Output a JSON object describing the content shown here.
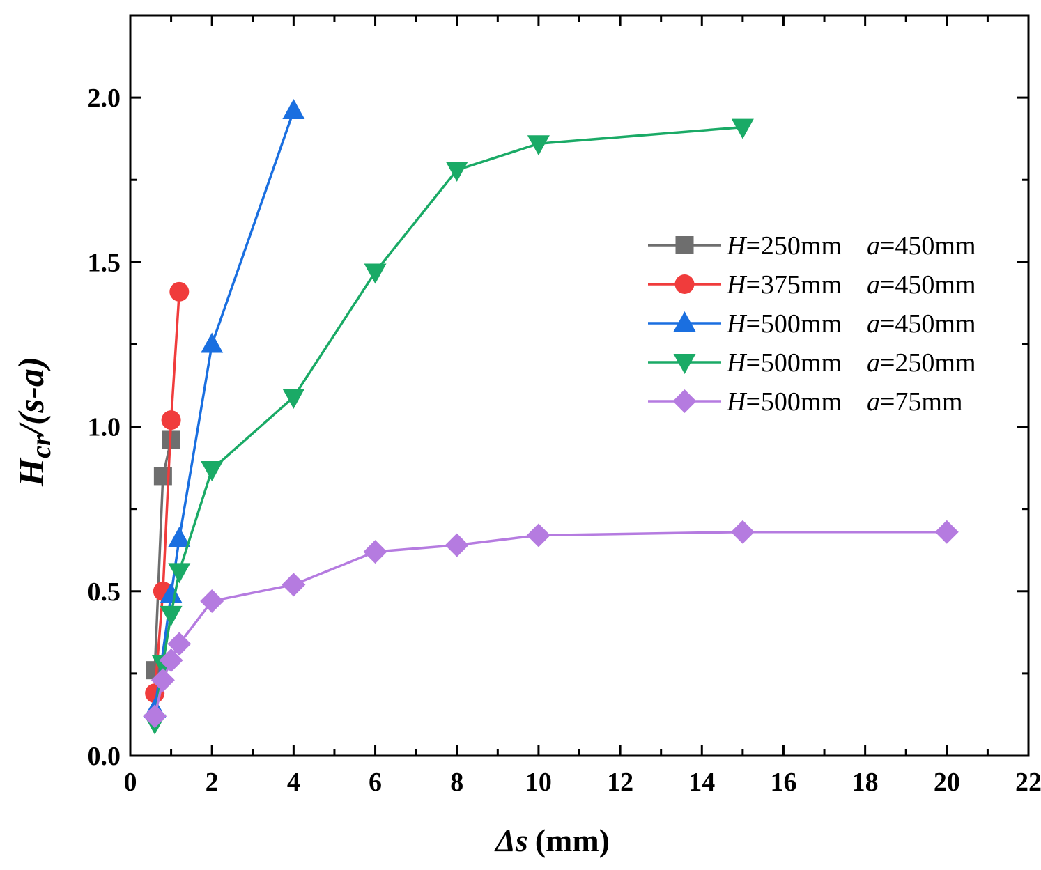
{
  "chart_data": {
    "type": "line",
    "xlabel": {
      "symbol": "Δs",
      "unit": "(mm)"
    },
    "ylabel": {
      "main": "H",
      "sub": "cr",
      "rest": "/(s-a)"
    },
    "xlim": [
      0,
      22
    ],
    "ylim": [
      0,
      2.25
    ],
    "xticks": [
      0,
      2,
      4,
      6,
      8,
      10,
      12,
      14,
      16,
      18,
      20,
      22
    ],
    "yticks": [
      0.0,
      0.5,
      1.0,
      1.5,
      2.0
    ],
    "xtick_labels": [
      "0",
      "2",
      "4",
      "6",
      "8",
      "10",
      "12",
      "14",
      "16",
      "18",
      "20",
      "22"
    ],
    "ytick_labels": [
      "0.0",
      "0.5",
      "1.0",
      "1.5",
      "2.0"
    ],
    "legend_position": "center-right",
    "series": [
      {
        "name": "H=250mm   a=450mm",
        "label_H": "250mm",
        "label_a": "450mm",
        "color": "#6e6e6e",
        "marker": "square",
        "x": [
          0.6,
          0.8,
          1.0
        ],
        "y": [
          0.26,
          0.85,
          0.96
        ]
      },
      {
        "name": "H=375mm   a=450mm",
        "label_H": "375mm",
        "label_a": "450mm",
        "color": "#f03c3c",
        "marker": "circle",
        "x": [
          0.6,
          0.8,
          1.0,
          1.2
        ],
        "y": [
          0.19,
          0.5,
          1.02,
          1.41
        ]
      },
      {
        "name": "H=500mm   a=450mm",
        "label_H": "500mm",
        "label_a": "450mm",
        "color": "#1a6fe0",
        "marker": "triangle-up",
        "x": [
          0.6,
          1.0,
          1.2,
          2.0,
          4.0
        ],
        "y": [
          0.14,
          0.49,
          0.66,
          1.25,
          1.96
        ]
      },
      {
        "name": "H=500mm   a=250mm",
        "label_H": "500mm",
        "label_a": "250mm",
        "color": "#1aaa66",
        "marker": "triangle-down",
        "x": [
          0.6,
          0.8,
          1.0,
          1.2,
          2.0,
          4.0,
          6.0,
          8.0,
          10.0,
          15.0
        ],
        "y": [
          0.1,
          0.28,
          0.43,
          0.56,
          0.87,
          1.09,
          1.47,
          1.78,
          1.86,
          1.91
        ]
      },
      {
        "name": "H=500mm   a=75mm",
        "label_H": "500mm",
        "label_a": "75mm",
        "color": "#b57be0",
        "marker": "diamond",
        "x": [
          0.6,
          0.8,
          1.0,
          1.2,
          2.0,
          4.0,
          6.0,
          8.0,
          10.0,
          15.0,
          20.0
        ],
        "y": [
          0.12,
          0.23,
          0.29,
          0.34,
          0.47,
          0.52,
          0.62,
          0.64,
          0.67,
          0.68,
          0.68
        ]
      }
    ]
  }
}
